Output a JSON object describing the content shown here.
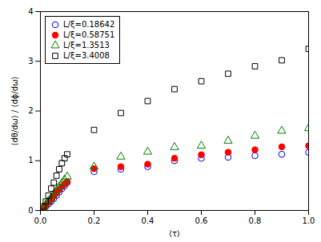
{
  "chart_data": {
    "type": "scatter",
    "xlabel": "⟨τ⟩",
    "ylabel": "⟨dθ/dω⟩ / ⟨dϕ/dω⟩",
    "xlim": [
      0,
      1
    ],
    "ylim": [
      0,
      4
    ],
    "xticks": [
      {
        "value": 0,
        "label": "0.0"
      },
      {
        "value": 0.2,
        "label": "0.2"
      },
      {
        "value": 0.4,
        "label": "0.4"
      },
      {
        "value": 0.6,
        "label": "0.6"
      },
      {
        "value": 0.8,
        "label": "0.8"
      },
      {
        "value": 1,
        "label": "1.0"
      }
    ],
    "yticks": [
      0,
      1,
      2,
      3,
      4
    ],
    "x": [
      0.01,
      0.02,
      0.03,
      0.04,
      0.05,
      0.06,
      0.07,
      0.08,
      0.09,
      0.1,
      0.2,
      0.3,
      0.4,
      0.5,
      0.6,
      0.7,
      0.8,
      0.9,
      1.0
    ],
    "series": [
      {
        "name": "L/ξ=0.18642",
        "color": "blue",
        "marker": "circle-open",
        "values": [
          0.04,
          0.08,
          0.13,
          0.18,
          0.24,
          0.3,
          0.37,
          0.44,
          0.5,
          0.56,
          0.78,
          0.83,
          0.88,
          1.0,
          1.05,
          1.07,
          1.1,
          1.13,
          1.17
        ]
      },
      {
        "name": "L/ξ=0.58751",
        "color": "red",
        "marker": "circle",
        "values": [
          0.05,
          0.1,
          0.16,
          0.22,
          0.29,
          0.36,
          0.42,
          0.48,
          0.53,
          0.58,
          0.84,
          0.88,
          0.93,
          1.05,
          1.12,
          1.17,
          1.22,
          1.28,
          1.3
        ]
      },
      {
        "name": "L/ξ=1.3513",
        "color": "green",
        "marker": "triangle-open",
        "values": [
          0.06,
          0.12,
          0.19,
          0.26,
          0.33,
          0.4,
          0.48,
          0.55,
          0.62,
          0.68,
          0.88,
          1.08,
          1.18,
          1.27,
          1.3,
          1.4,
          1.5,
          1.6,
          1.65
        ]
      },
      {
        "name": "L/ξ=3.4008",
        "color": "black",
        "marker": "square-open",
        "values": [
          0.08,
          0.18,
          0.3,
          0.44,
          0.56,
          0.7,
          0.83,
          0.95,
          1.05,
          1.13,
          1.62,
          1.96,
          2.2,
          2.44,
          2.6,
          2.75,
          2.9,
          3.02,
          3.25
        ]
      }
    ],
    "legend": "upper left",
    "grid": false
  }
}
